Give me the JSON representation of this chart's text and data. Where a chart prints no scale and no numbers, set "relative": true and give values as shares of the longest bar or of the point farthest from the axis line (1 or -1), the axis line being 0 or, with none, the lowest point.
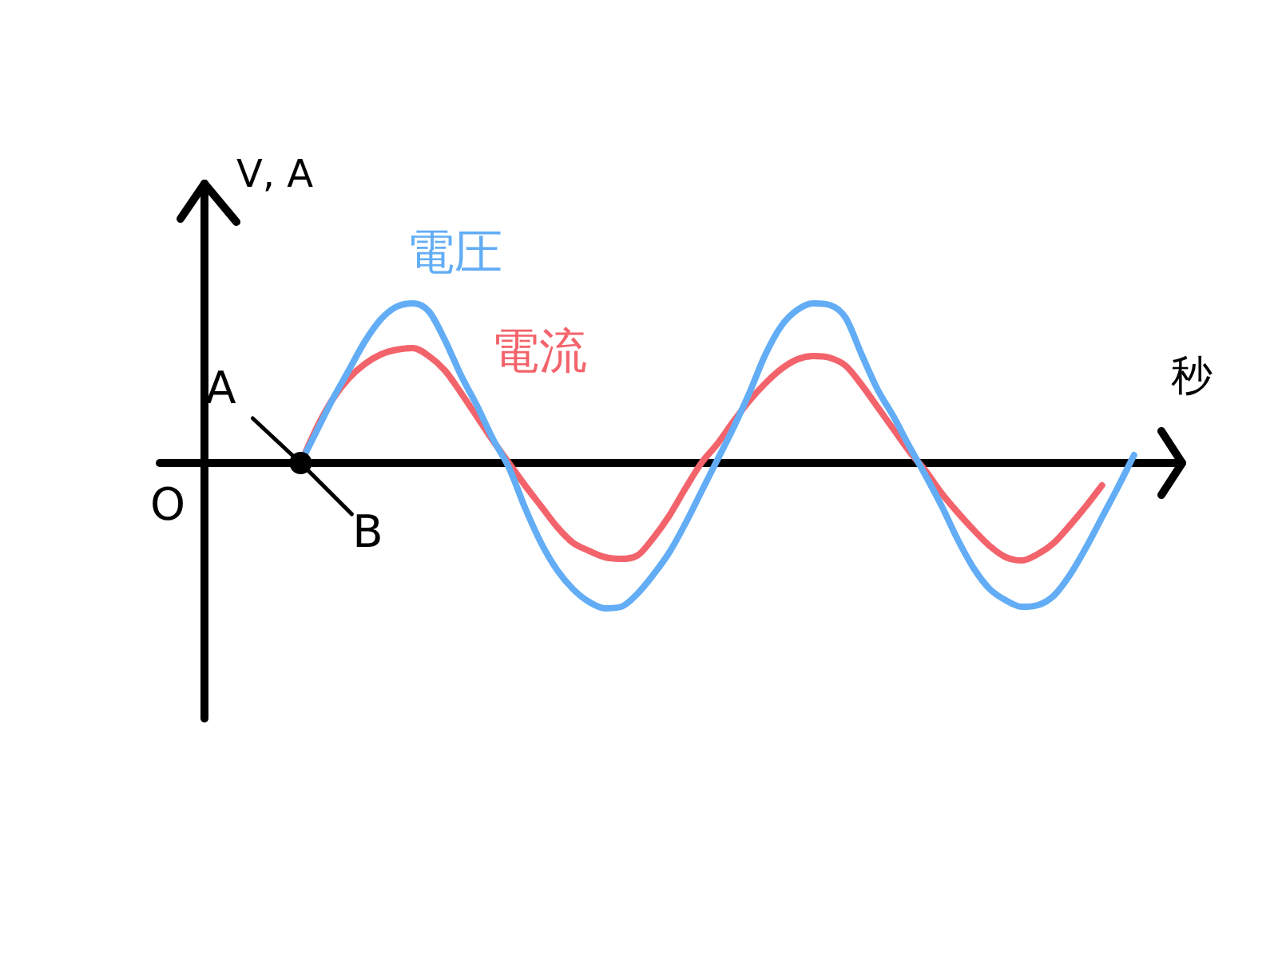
{
  "chart_data": {
    "type": "line",
    "relative": true,
    "xlabel": "秒",
    "ylabel": "V, A",
    "categories": [
      null,
      null,
      null,
      null,
      null,
      null,
      null,
      null,
      null,
      null,
      null,
      null,
      null,
      null,
      null,
      null,
      null,
      null,
      null,
      null,
      null,
      null,
      null,
      null,
      null,
      null,
      null,
      null,
      null,
      null,
      null,
      null,
      null,
      null,
      null,
      null,
      null,
      null,
      null,
      null,
      null,
      null,
      null,
      null,
      null,
      null,
      null,
      null,
      null,
      null,
      null,
      null,
      null,
      null,
      null,
      null,
      null,
      null,
      null,
      null,
      null,
      null
    ],
    "series": [
      {
        "name": "電圧",
        "color": "#62adf5",
        "values": [
          null,
          null,
          null,
          null,
          null,
          null,
          0,
          0.2,
          0.4,
          0.58,
          0.76,
          0.9,
          0.98,
          1,
          0.95,
          0.77,
          0.55,
          0.36,
          0.15,
          -0.03,
          -0.28,
          -0.5,
          -0.67,
          -0.79,
          -0.87,
          -0.91,
          -0.9,
          -0.82,
          -0.7,
          -0.56,
          -0.38,
          -0.18,
          0.02,
          0.22,
          0.44,
          0.68,
          0.86,
          0.96,
          1,
          0.99,
          0.91,
          0.68,
          0.46,
          0.29,
          0.1,
          -0.08,
          -0.27,
          -0.48,
          -0.66,
          -0.79,
          -0.86,
          -0.9,
          -0.89,
          -0.83,
          -0.7,
          -0.53,
          -0.34,
          -0.15,
          0.05,
          null,
          null,
          null
        ]
      },
      {
        "name": "電流",
        "color": "#f3636b",
        "values": [
          null,
          null,
          null,
          null,
          null,
          null,
          0,
          0.22,
          0.4,
          0.53,
          0.62,
          0.68,
          0.71,
          0.72,
          0.67,
          0.58,
          0.44,
          0.29,
          0.14,
          0,
          -0.14,
          -0.27,
          -0.4,
          -0.5,
          -0.55,
          -0.59,
          -0.6,
          -0.58,
          -0.47,
          -0.33,
          -0.16,
          0,
          0.12,
          0.26,
          0.39,
          0.5,
          0.59,
          0.65,
          0.67,
          0.66,
          0.61,
          0.49,
          0.35,
          0.21,
          0.07,
          -0.05,
          -0.19,
          -0.31,
          -0.42,
          -0.52,
          -0.59,
          -0.61,
          -0.57,
          -0.5,
          -0.39,
          -0.27,
          -0.14,
          null,
          null,
          null,
          null,
          null
        ]
      }
    ],
    "annotations": [
      "O",
      "A",
      "B"
    ],
    "legend": false
  }
}
